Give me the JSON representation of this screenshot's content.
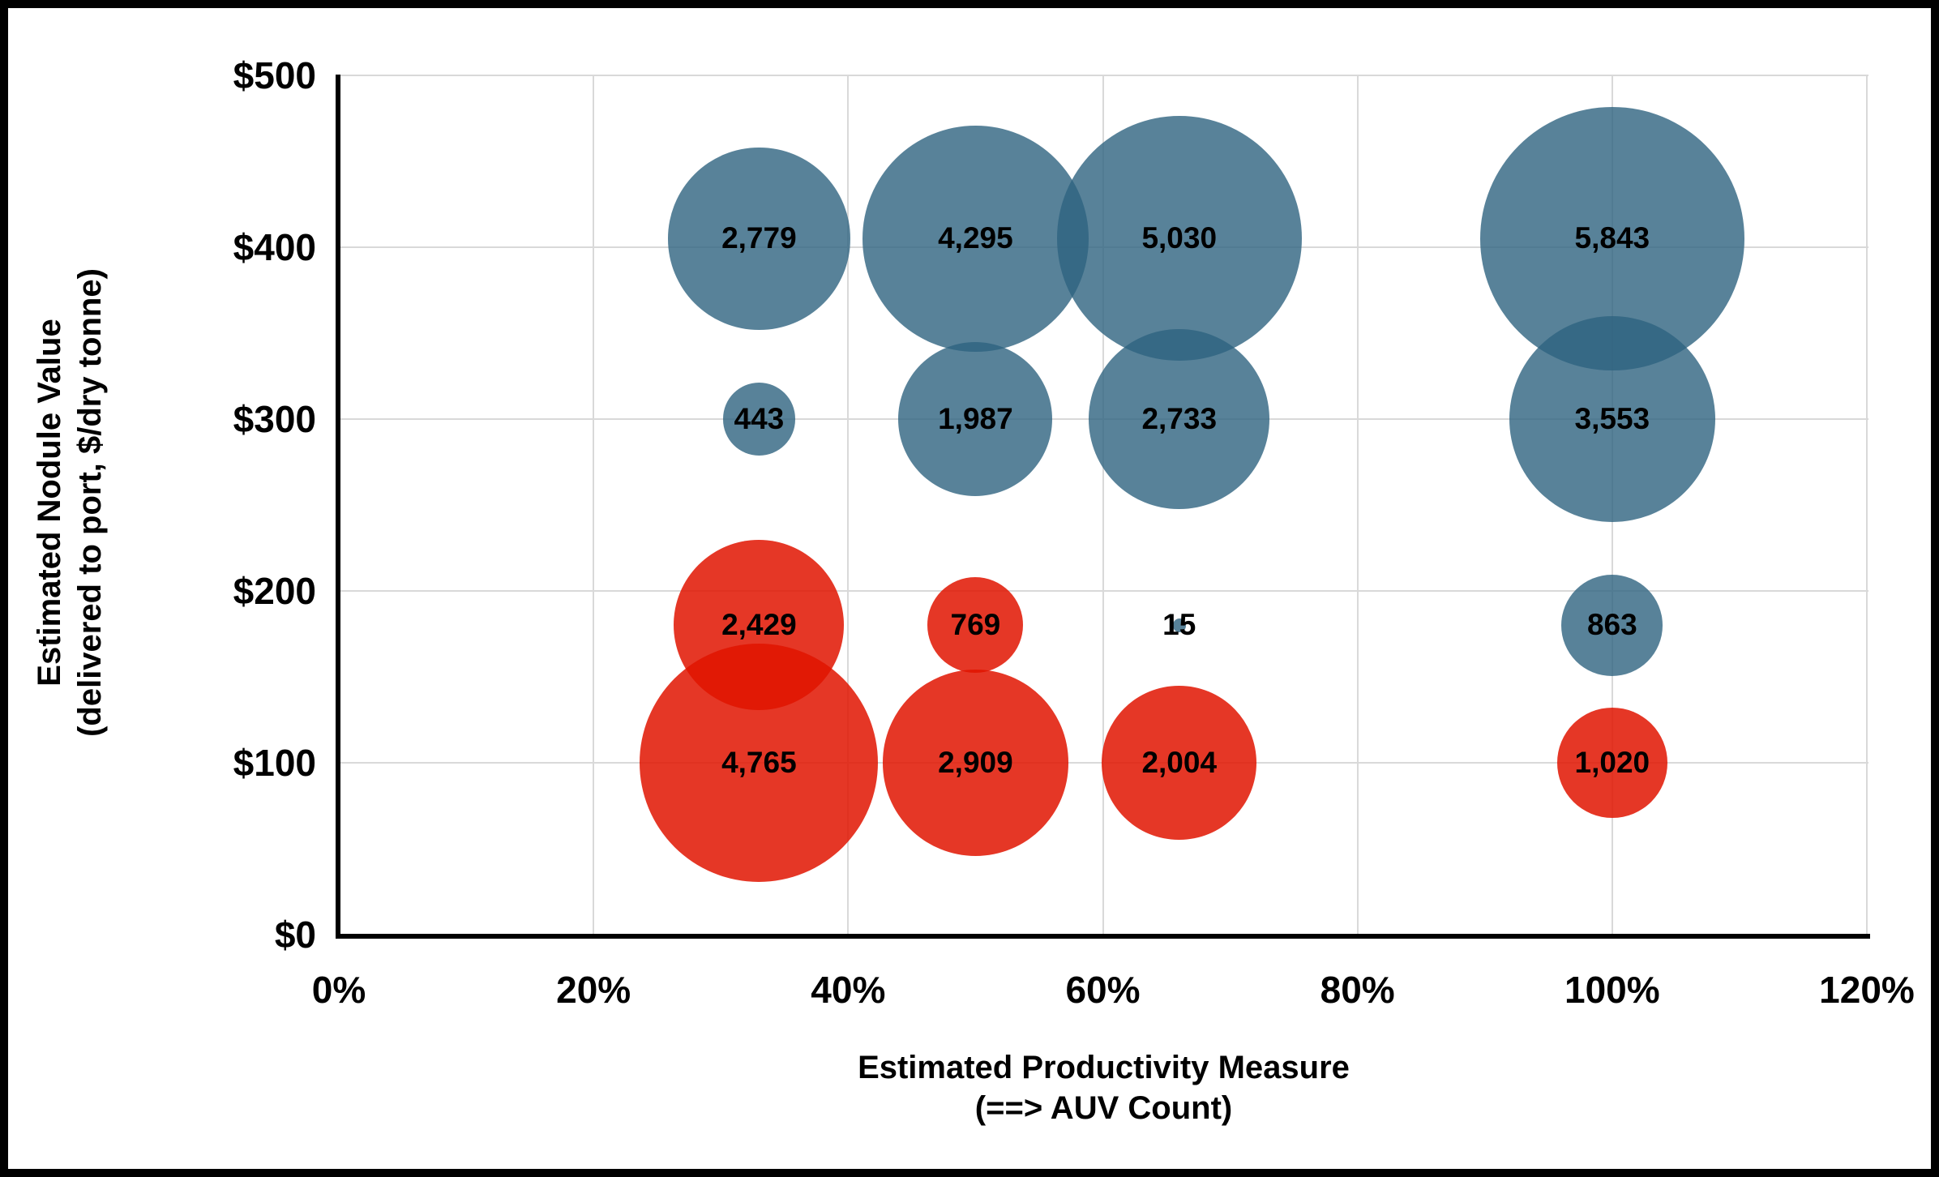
{
  "chart_data": {
    "type": "scatter",
    "subtype": "bubble",
    "title": "",
    "xlabel_line1": "Estimated Productivity Measure",
    "xlabel_line2": "(==> AUV Count)",
    "ylabel_line1": "Estimated Nodule Value",
    "ylabel_line2": "(delivered to port, $/dry tonne)",
    "xlim": [
      0,
      120
    ],
    "ylim": [
      0,
      500
    ],
    "x_ticks": [
      "0%",
      "20%",
      "40%",
      "60%",
      "80%",
      "100%",
      "120%"
    ],
    "x_tick_values": [
      0,
      20,
      40,
      60,
      80,
      100,
      120
    ],
    "y_ticks": [
      "$0",
      "$100",
      "$200",
      "$300",
      "$400",
      "$500"
    ],
    "y_tick_values": [
      0,
      100,
      200,
      300,
      400,
      500
    ],
    "grid": true,
    "legend": false,
    "colors": {
      "blue_series": "#2E637F",
      "red_series": "#E01400",
      "gridline": "#d9d9d9",
      "axis": "#000000"
    },
    "series": [
      {
        "name": "blue",
        "color": "#2E637F",
        "opacity": 0.8,
        "points": [
          {
            "x": 33,
            "y": 405,
            "value": 2779,
            "label": "2,779"
          },
          {
            "x": 50,
            "y": 405,
            "value": 4295,
            "label": "4,295"
          },
          {
            "x": 66,
            "y": 405,
            "value": 5030,
            "label": "5,030"
          },
          {
            "x": 100,
            "y": 405,
            "value": 5843,
            "label": "5,843"
          },
          {
            "x": 33,
            "y": 300,
            "value": 443,
            "label": "443"
          },
          {
            "x": 50,
            "y": 300,
            "value": 1987,
            "label": "1,987"
          },
          {
            "x": 66,
            "y": 300,
            "value": 2733,
            "label": "2,733"
          },
          {
            "x": 100,
            "y": 300,
            "value": 3553,
            "label": "3,553"
          },
          {
            "x": 66,
            "y": 180,
            "value": 15,
            "label": "15"
          },
          {
            "x": 100,
            "y": 180,
            "value": 863,
            "label": "863"
          }
        ]
      },
      {
        "name": "red",
        "color": "#E01400",
        "opacity": 0.85,
        "points": [
          {
            "x": 33,
            "y": 180,
            "value": 2429,
            "label": "2,429"
          },
          {
            "x": 50,
            "y": 180,
            "value": 769,
            "label": "769"
          },
          {
            "x": 33,
            "y": 100,
            "value": 4765,
            "label": "4,765"
          },
          {
            "x": 50,
            "y": 100,
            "value": 2909,
            "label": "2,909"
          },
          {
            "x": 66,
            "y": 100,
            "value": 2004,
            "label": "2,004"
          },
          {
            "x": 100,
            "y": 100,
            "value": 1020,
            "label": "1,020"
          }
        ]
      }
    ]
  }
}
